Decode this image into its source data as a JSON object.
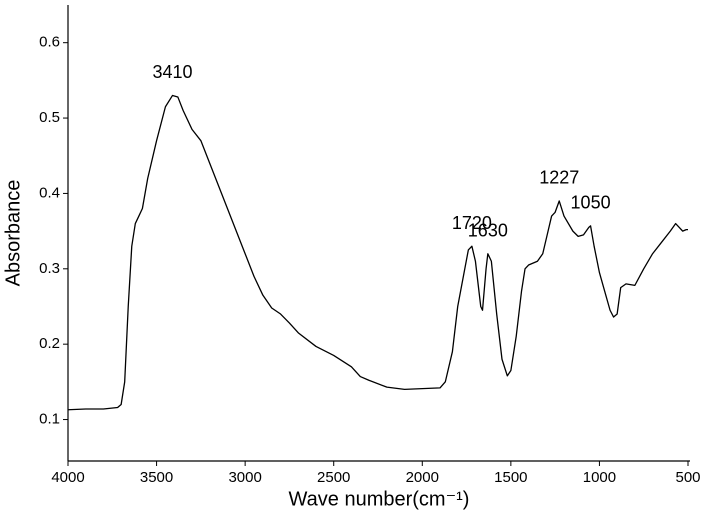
{
  "chart_data": {
    "type": "line",
    "xlabel": "Wave number(cm⁻¹)",
    "ylabel": "Absorbance",
    "xlim": [
      4000,
      500
    ],
    "ylim": [
      0.045,
      0.65
    ],
    "xticks": [
      4000,
      3500,
      3000,
      2500,
      2000,
      1500,
      1000,
      500
    ],
    "yticks": [
      0.1,
      0.2,
      0.3,
      0.4,
      0.5,
      0.6
    ],
    "grid": false,
    "x": [
      4000,
      3900,
      3800,
      3720,
      3700,
      3680,
      3660,
      3640,
      3620,
      3600,
      3580,
      3550,
      3500,
      3450,
      3410,
      3380,
      3350,
      3300,
      3250,
      3200,
      3100,
      3000,
      2950,
      2900,
      2850,
      2800,
      2750,
      2700,
      2600,
      2500,
      2400,
      2350,
      2300,
      2200,
      2100,
      2000,
      1900,
      1870,
      1830,
      1800,
      1760,
      1740,
      1720,
      1700,
      1670,
      1660,
      1640,
      1630,
      1610,
      1580,
      1550,
      1520,
      1500,
      1470,
      1440,
      1420,
      1400,
      1350,
      1320,
      1290,
      1270,
      1250,
      1227,
      1200,
      1150,
      1120,
      1090,
      1060,
      1050,
      1030,
      1000,
      970,
      940,
      920,
      900,
      880,
      850,
      800,
      750,
      700,
      650,
      600,
      570,
      550,
      530,
      510,
      500
    ],
    "series": [
      {
        "color": "#000000",
        "values": [
          0.113,
          0.114,
          0.114,
          0.116,
          0.12,
          0.15,
          0.25,
          0.33,
          0.36,
          0.37,
          0.38,
          0.42,
          0.47,
          0.515,
          0.53,
          0.528,
          0.51,
          0.485,
          0.47,
          0.44,
          0.38,
          0.32,
          0.29,
          0.265,
          0.248,
          0.24,
          0.228,
          0.215,
          0.197,
          0.185,
          0.17,
          0.157,
          0.152,
          0.143,
          0.14,
          0.141,
          0.142,
          0.15,
          0.19,
          0.25,
          0.3,
          0.325,
          0.33,
          0.31,
          0.25,
          0.245,
          0.3,
          0.32,
          0.31,
          0.24,
          0.18,
          0.158,
          0.165,
          0.21,
          0.27,
          0.3,
          0.305,
          0.31,
          0.32,
          0.35,
          0.37,
          0.375,
          0.39,
          0.37,
          0.35,
          0.343,
          0.345,
          0.355,
          0.357,
          0.33,
          0.295,
          0.27,
          0.245,
          0.236,
          0.24,
          0.275,
          0.28,
          0.278,
          0.3,
          0.32,
          0.335,
          0.35,
          0.36,
          0.355,
          0.35,
          0.352,
          0.352
        ]
      }
    ],
    "annotations": [
      {
        "text": "3410",
        "x": 3410,
        "y": 0.53
      },
      {
        "text": "1720",
        "x": 1720,
        "y": 0.33
      },
      {
        "text": "1630",
        "x": 1630,
        "y": 0.32
      },
      {
        "text": "1227",
        "x": 1227,
        "y": 0.39
      },
      {
        "text": "1050",
        "x": 1050,
        "y": 0.357
      }
    ]
  }
}
